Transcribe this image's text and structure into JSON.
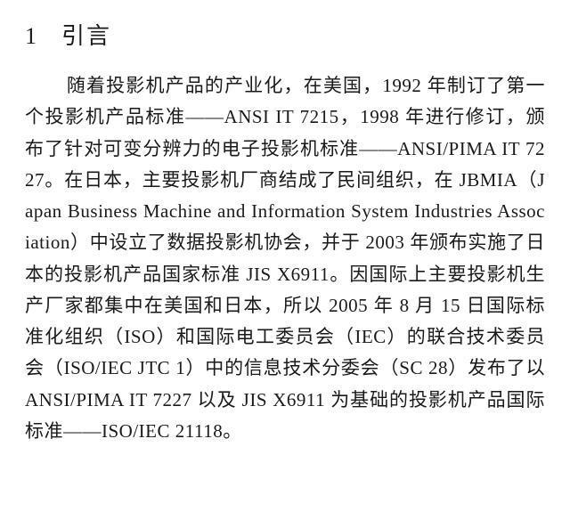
{
  "heading": {
    "number": "1",
    "title": "引言"
  },
  "paragraph": {
    "text": "随着投影机产品的产业化，在美国，1992 年制订了第一个投影机产品标准——ANSI IT 7215，1998 年进行修订，颁布了针对可变分辨力的电子投影机标准——ANSI/PIMA IT 7227。在日本，主要投影机厂商结成了民间组织，在 JBMIA（Japan Business Machine and Information System Industries Association）中设立了数据投影机协会，并于 2003 年颁布实施了日本的投影机产品国家标准 JIS X6911。因国际上主要投影机生产厂家都集中在美国和日本，所以 2005 年 8 月 15 日国际标准化组织（ISO）和国际电工委员会（IEC）的联合技术委员会（ISO/IEC JTC 1）中的信息技术分委会（SC 28）发布了以 ANSI/PIMA IT 7227 以及 JIS X6911 为基础的投影机产品国际标准——ISO/IEC 21118。"
  },
  "typography": {
    "heading_fontsize": 26,
    "body_fontsize": 21,
    "line_height": 1.68,
    "text_color": "#1a1a1a",
    "background_color": "#ffffff",
    "font_family": "SimSun"
  }
}
